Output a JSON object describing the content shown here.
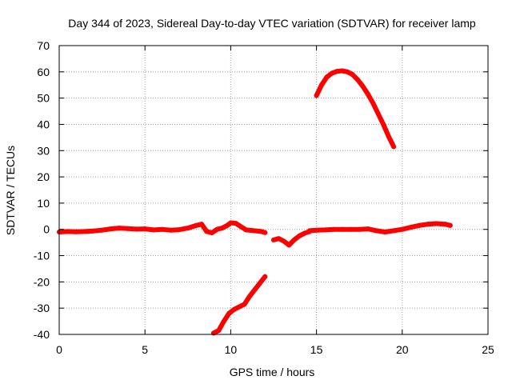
{
  "chart_data": {
    "type": "scatter",
    "title": "Day 344 of 2023, Sidereal Day-to-day VTEC variation (SDTVAR) for receiver lamp",
    "xlabel": "GPS time / hours",
    "ylabel": "SDTVAR / TECUs",
    "xlim": [
      0,
      25
    ],
    "ylim": [
      -40,
      70
    ],
    "xticks": [
      0,
      5,
      10,
      15,
      20,
      25
    ],
    "yticks": [
      -40,
      -30,
      -20,
      -10,
      0,
      10,
      20,
      30,
      40,
      50,
      60,
      70
    ],
    "grid": true,
    "legend": "none",
    "colors": {
      "series": "#ff0000",
      "grid": "#a0a0a0",
      "axis": "#000000"
    },
    "series": [
      {
        "name": "segment-1",
        "x": [
          0,
          0.5,
          1,
          1.5,
          2,
          2.5,
          3,
          3.5,
          4,
          4.5,
          5,
          5.5,
          6,
          6.5,
          7,
          7.5,
          8,
          8.3,
          8.6,
          8.9,
          9.2,
          9.5,
          9.8,
          10,
          10.3,
          10.6,
          10.9,
          11.2,
          11.5,
          11.8,
          12
        ],
        "y": [
          -1,
          -0.8,
          -0.9,
          -0.8,
          -0.6,
          -0.3,
          0.2,
          0.5,
          0.3,
          0.1,
          0.2,
          -0.2,
          0,
          -0.3,
          -0.1,
          0.5,
          1.5,
          2,
          -0.8,
          -1.3,
          0,
          0.5,
          1.5,
          2.5,
          2.3,
          1,
          -0.2,
          -0.4,
          -0.6,
          -0.8,
          -1.2
        ]
      },
      {
        "name": "segment-2",
        "x": [
          9,
          9.3,
          9.6,
          9.9,
          10.2,
          10.5,
          10.8,
          11.1,
          11.4,
          11.7,
          12
        ],
        "y": [
          -39.5,
          -38.5,
          -35,
          -32,
          -30.5,
          -29.5,
          -28.5,
          -25.5,
          -23,
          -20.5,
          -18
        ]
      },
      {
        "name": "segment-3",
        "x": [
          12.5,
          12.8,
          13.1,
          13.4,
          13.7,
          14,
          14.3,
          14.6
        ],
        "y": [
          -4,
          -3.5,
          -4.5,
          -6,
          -4,
          -2.5,
          -1.5,
          -0.8
        ]
      },
      {
        "name": "segment-4",
        "x": [
          14.6,
          15,
          15.5,
          16,
          16.5,
          17,
          17.5,
          18,
          18.5,
          19,
          19.5,
          20,
          20.5,
          21,
          21.5,
          22,
          22.5,
          22.8
        ],
        "y": [
          -0.5,
          -0.3,
          -0.2,
          0,
          0,
          0,
          0,
          0.2,
          -0.5,
          -1,
          -0.5,
          0,
          0.8,
          1.5,
          2,
          2.2,
          2,
          1.5
        ]
      },
      {
        "name": "segment-5",
        "x": [
          15,
          15.3,
          15.6,
          15.9,
          16.2,
          16.5,
          16.8,
          17.1,
          17.4,
          17.7,
          18,
          18.3,
          18.6,
          18.9,
          19.2,
          19.5
        ],
        "y": [
          51,
          55,
          58,
          59.5,
          60.2,
          60.4,
          60,
          59,
          57,
          54.5,
          51.5,
          48,
          44,
          40,
          35.5,
          31.5
        ]
      }
    ]
  }
}
